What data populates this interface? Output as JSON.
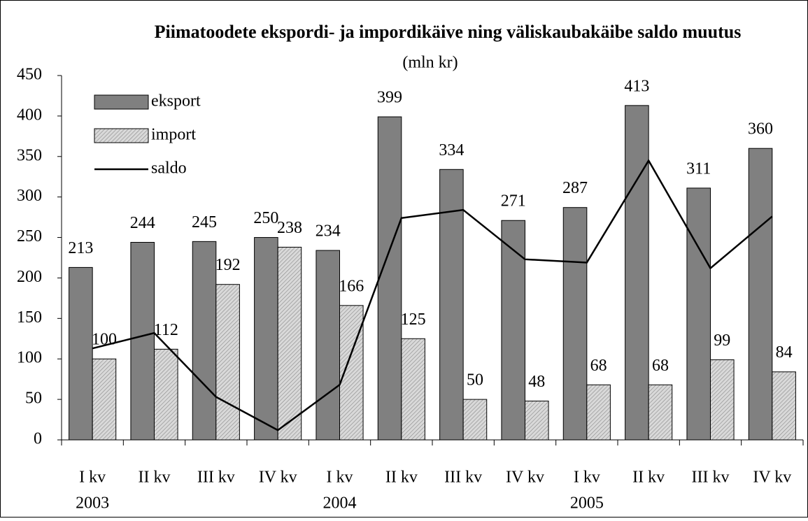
{
  "chart_data": {
    "type": "bar",
    "title": "Piimatoodete ekspordi- ja impordikäive ning väliskaubakäibe saldo muutus",
    "subtitle": "(mln kr)",
    "categories": [
      "I kv",
      "II kv",
      "III kv",
      "IV kv",
      "I kv",
      "II kv",
      "III kv",
      "IV kv",
      "I kv",
      "II kv",
      "III kv",
      "IV kv"
    ],
    "years": [
      "2003",
      null,
      null,
      null,
      "2004",
      null,
      null,
      null,
      "2005",
      null,
      null,
      null
    ],
    "series": [
      {
        "name": "eksport",
        "type": "bar",
        "color": "#808080",
        "values": [
          213,
          244,
          245,
          250,
          234,
          399,
          334,
          271,
          287,
          413,
          311,
          360
        ]
      },
      {
        "name": "import",
        "type": "bar",
        "color": "#d9d9d9",
        "hatch": true,
        "values": [
          100,
          112,
          192,
          238,
          166,
          125,
          50,
          48,
          68,
          68,
          99,
          84
        ]
      },
      {
        "name": "saldo",
        "type": "line",
        "color": "#000000",
        "values": [
          113,
          132,
          53,
          12,
          68,
          274,
          284,
          223,
          219,
          345,
          212,
          276
        ]
      }
    ],
    "ylim": [
      0,
      450
    ],
    "yticks": [
      0,
      50,
      100,
      150,
      200,
      250,
      300,
      350,
      400,
      450
    ],
    "data_labels_on": [
      "eksport",
      "import"
    ],
    "legend": "top-left",
    "grid": false
  }
}
